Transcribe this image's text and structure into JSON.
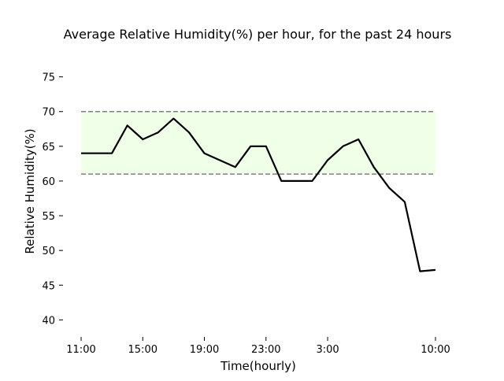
{
  "chart_data": {
    "type": "line",
    "title": "Average Relative Humidity(%) per hour, for the past 24 hours",
    "xlabel": "Time(hourly)",
    "ylabel": "Relative Humidity(%)",
    "ylim": [
      38,
      77
    ],
    "xlim": [
      0,
      23
    ],
    "yticks": [
      40,
      45,
      50,
      55,
      60,
      65,
      70,
      75
    ],
    "xticks": [
      {
        "x": 0,
        "label": "11:00"
      },
      {
        "x": 4,
        "label": "15:00"
      },
      {
        "x": 8,
        "label": "19:00"
      },
      {
        "x": 12,
        "label": "23:00"
      },
      {
        "x": 16,
        "label": "3:00"
      },
      {
        "x": 23,
        "label": "10:00"
      }
    ],
    "comfort_band": {
      "low": 61,
      "high": 70,
      "fill_color": "#efffe8",
      "line_color": "#808080"
    },
    "series": [
      {
        "color": "#000000",
        "x": [
          0,
          1,
          2,
          3,
          4,
          5,
          6,
          7,
          8,
          9,
          10,
          11,
          12,
          13,
          14,
          15,
          16,
          17,
          18,
          19,
          20,
          21,
          22,
          23
        ],
        "values": [
          64,
          64,
          64,
          68,
          66,
          67,
          69,
          67,
          64,
          63,
          62,
          65,
          65,
          60,
          60,
          60,
          63,
          65,
          66,
          62,
          59,
          57,
          47,
          47.2
        ]
      }
    ],
    "grid": false,
    "legend": "none"
  }
}
